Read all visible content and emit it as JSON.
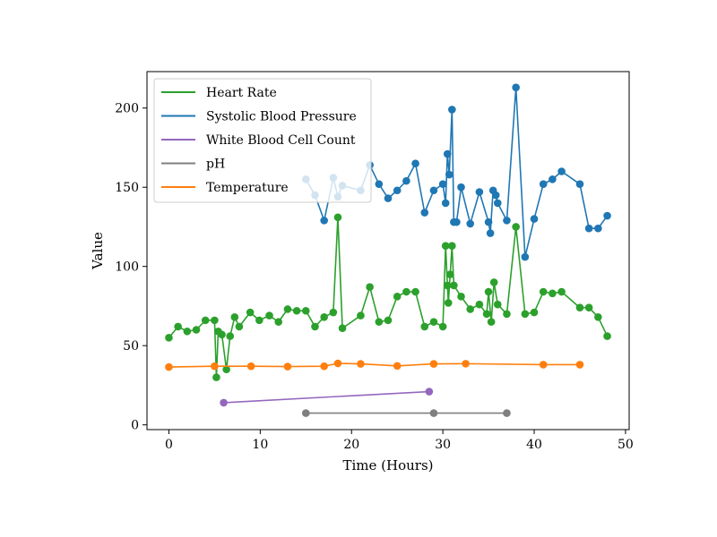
{
  "chart_data": {
    "type": "line",
    "title": "",
    "xlabel": "Time (Hours)",
    "ylabel": "Value",
    "xlim": [
      -2.4,
      50.4
    ],
    "ylim": [
      -3,
      223
    ],
    "xticks": [
      0,
      10,
      20,
      30,
      40,
      50
    ],
    "yticks": [
      0,
      50,
      100,
      150,
      200
    ],
    "grid": false,
    "legend_position": "upper-left",
    "series": [
      {
        "name": "Heart Rate",
        "color": "#2ca02c",
        "x": [
          0,
          1,
          2,
          3,
          4,
          5,
          5.2,
          5.4,
          5.8,
          6.3,
          6.7,
          7.2,
          7.7,
          8.9,
          9.9,
          11,
          12,
          13,
          14,
          15,
          16,
          17,
          18,
          18.5,
          19,
          21,
          22,
          23,
          24,
          25,
          26,
          27,
          28,
          29,
          30,
          30.3,
          30.5,
          30.6,
          30.8,
          31,
          31.2,
          32,
          33,
          34,
          34.8,
          35,
          35.3,
          35.6,
          36,
          37,
          38,
          39,
          40,
          41,
          42,
          43,
          45,
          46,
          47,
          48
        ],
        "y": [
          55,
          62,
          59,
          60,
          66,
          66,
          30,
          59,
          57,
          35,
          56,
          68,
          62,
          71,
          66,
          69,
          65,
          73,
          72,
          72,
          62,
          68,
          71,
          131,
          61,
          69,
          87,
          65,
          66,
          81,
          84,
          84,
          62,
          65,
          62,
          113,
          88,
          77,
          95,
          113,
          88,
          81,
          73,
          76,
          70,
          84,
          65,
          90,
          76,
          70,
          125,
          70,
          71,
          84,
          83,
          84,
          74,
          74,
          68,
          56
        ]
      },
      {
        "name": "Systolic Blood Pressure",
        "color": "#1f77b4",
        "x": [
          15,
          16,
          17,
          18,
          18.5,
          19,
          21,
          22,
          23,
          24,
          25,
          26,
          27,
          28,
          29,
          30,
          30.3,
          30.5,
          30.7,
          31,
          31.2,
          31.5,
          32,
          33,
          34,
          35,
          35.2,
          35.5,
          35.8,
          36,
          37,
          38,
          39,
          40,
          41,
          42,
          43,
          45,
          46,
          47,
          48
        ],
        "y": [
          155,
          145,
          129,
          156,
          144,
          151,
          148,
          164,
          152,
          143,
          148,
          154,
          165,
          134,
          148,
          152,
          140,
          171,
          158,
          199,
          128,
          128,
          150,
          127,
          147,
          128,
          121,
          148,
          145,
          140,
          129,
          213,
          106,
          130,
          152,
          155,
          160,
          152,
          124,
          124,
          132
        ]
      },
      {
        "name": "White Blood Cell Count",
        "color": "#9467bd",
        "x": [
          6,
          28.5
        ],
        "y": [
          14,
          21
        ]
      },
      {
        "name": "pH",
        "color": "#7f7f7f",
        "x": [
          15,
          29,
          37
        ],
        "y": [
          7.4,
          7.4,
          7.4
        ]
      },
      {
        "name": "Temperature",
        "color": "#ff7f0e",
        "x": [
          0,
          5,
          9,
          13,
          17,
          18.5,
          21,
          25,
          29,
          32.5,
          41,
          45
        ],
        "y": [
          36.5,
          37,
          37,
          36.8,
          37,
          38.8,
          38.5,
          37.2,
          38.5,
          38.6,
          38,
          38
        ]
      }
    ]
  }
}
